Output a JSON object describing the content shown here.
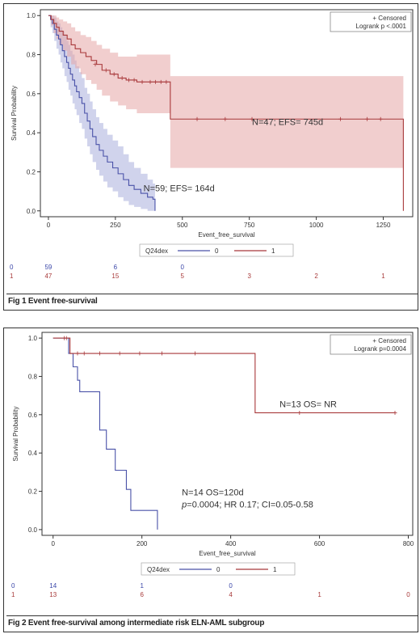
{
  "colors": {
    "group0": "#4a52a8",
    "group1": "#a8383a",
    "band0": "#a9aedc",
    "band1": "#e6a6a6",
    "axis": "#333333",
    "at_risk0": "#3a46a8",
    "at_risk1": "#a83a3a"
  },
  "figures": [
    {
      "caption": "Fig 1 Event free-survival",
      "legend_censored": "+ Censored",
      "legend_logrank": "Logrank p <.0001",
      "strata_label": "Q24dex",
      "strata_names": [
        "0",
        "1"
      ],
      "annotations": [
        {
          "lines": [
            "N=47; EFS= 745d"
          ],
          "x": 760,
          "y": 0.44
        },
        {
          "lines": [
            "N=59; EFS= 164d"
          ],
          "x": 355,
          "y": 0.1
        }
      ],
      "at_risk_times": [
        0,
        250,
        500,
        750,
        1000,
        1250
      ],
      "at_risk": [
        {
          "group": "0",
          "counts": [
            "0",
            "59",
            "6",
            "0",
            "",
            "",
            ""
          ]
        },
        {
          "group": "1",
          "counts": [
            "1",
            "47",
            "15",
            "5",
            "3",
            "2",
            "1"
          ]
        }
      ]
    },
    {
      "caption": "Fig 2 Event free-survival among intermediate risk ELN-AML subgroup",
      "legend_censored": "+ Censored",
      "legend_logrank": "Logrank p=0.0004",
      "strata_label": "Q24dex",
      "strata_names": [
        "0",
        "1"
      ],
      "annotations": [
        {
          "lines": [
            "N=13 OS= NR"
          ],
          "x": 510,
          "y": 0.64
        },
        {
          "lines": [
            "N=14 OS=120d",
            "p=0.0004; HR 0.17; CI=0.05-0.58"
          ],
          "x": 290,
          "y": 0.18
        }
      ],
      "at_risk_times": [
        0,
        200,
        400,
        600,
        800
      ],
      "at_risk": [
        {
          "group": "0",
          "counts": [
            "0",
            "14",
            "1",
            "0",
            "",
            ""
          ]
        },
        {
          "group": "1",
          "counts": [
            "1",
            "13",
            "6",
            "4",
            "1",
            "0"
          ]
        }
      ]
    }
  ],
  "chart_data": [
    {
      "type": "line",
      "title": "",
      "xlabel": "Event_free_survival",
      "ylabel": "Survival Probability",
      "xlim": [
        -30,
        1360
      ],
      "ylim": [
        -0.03,
        1.03
      ],
      "xticks": [
        0,
        250,
        500,
        750,
        1000,
        1250
      ],
      "yticks": [
        0.0,
        0.2,
        0.4,
        0.6,
        0.8,
        1.0
      ],
      "legend_position": "top-right",
      "grid": false,
      "series": [
        {
          "name": "0",
          "x": [
            0,
            8,
            15,
            22,
            30,
            38,
            45,
            52,
            60,
            68,
            75,
            82,
            90,
            98,
            105,
            115,
            125,
            135,
            145,
            155,
            165,
            178,
            190,
            205,
            220,
            240,
            260,
            280,
            300,
            320,
            345,
            370,
            390,
            398
          ],
          "y": [
            1.0,
            0.98,
            0.96,
            0.93,
            0.9,
            0.88,
            0.85,
            0.82,
            0.79,
            0.76,
            0.73,
            0.7,
            0.67,
            0.64,
            0.61,
            0.58,
            0.55,
            0.5,
            0.46,
            0.42,
            0.38,
            0.34,
            0.31,
            0.28,
            0.25,
            0.22,
            0.19,
            0.16,
            0.13,
            0.11,
            0.09,
            0.07,
            0.06,
            0.0
          ],
          "lower": [
            1.0,
            0.94,
            0.91,
            0.87,
            0.83,
            0.8,
            0.76,
            0.73,
            0.69,
            0.66,
            0.62,
            0.59,
            0.55,
            0.52,
            0.49,
            0.45,
            0.42,
            0.37,
            0.33,
            0.29,
            0.25,
            0.21,
            0.18,
            0.15,
            0.12,
            0.1,
            0.07,
            0.05,
            0.03,
            0.02,
            0.01,
            0.0,
            0.0,
            0.0
          ],
          "upper": [
            1.0,
            1.0,
            1.0,
            0.99,
            0.97,
            0.96,
            0.94,
            0.92,
            0.9,
            0.87,
            0.85,
            0.82,
            0.8,
            0.77,
            0.74,
            0.71,
            0.68,
            0.63,
            0.6,
            0.56,
            0.52,
            0.48,
            0.45,
            0.42,
            0.39,
            0.36,
            0.33,
            0.29,
            0.25,
            0.22,
            0.19,
            0.16,
            0.14,
            0.0
          ],
          "censored": []
        },
        {
          "name": "1",
          "x": [
            0,
            10,
            20,
            30,
            40,
            55,
            70,
            85,
            100,
            120,
            140,
            160,
            180,
            200,
            230,
            260,
            290,
            330,
            455,
            1325
          ],
          "y": [
            1.0,
            0.98,
            0.96,
            0.94,
            0.92,
            0.9,
            0.88,
            0.85,
            0.83,
            0.81,
            0.79,
            0.77,
            0.75,
            0.72,
            0.7,
            0.68,
            0.67,
            0.66,
            0.47,
            0.0
          ],
          "lower": [
            1.0,
            0.95,
            0.91,
            0.88,
            0.85,
            0.82,
            0.79,
            0.75,
            0.73,
            0.7,
            0.67,
            0.65,
            0.62,
            0.59,
            0.56,
            0.54,
            0.52,
            0.5,
            0.22,
            0.0
          ],
          "upper": [
            1.0,
            1.0,
            1.0,
            0.99,
            0.98,
            0.97,
            0.96,
            0.94,
            0.92,
            0.9,
            0.89,
            0.87,
            0.85,
            0.83,
            0.81,
            0.79,
            0.79,
            0.8,
            0.69,
            0.0
          ],
          "censored": [
            [
              175,
              0.75
            ],
            [
              215,
              0.72
            ],
            [
              245,
              0.7
            ],
            [
              275,
              0.68
            ],
            [
              300,
              0.67
            ],
            [
              320,
              0.67
            ],
            [
              350,
              0.66
            ],
            [
              380,
              0.66
            ],
            [
              400,
              0.66
            ],
            [
              420,
              0.66
            ],
            [
              440,
              0.66
            ],
            [
              555,
              0.47
            ],
            [
              660,
              0.47
            ],
            [
              760,
              0.47
            ],
            [
              1090,
              0.47
            ],
            [
              1190,
              0.47
            ],
            [
              1240,
              0.47
            ]
          ]
        }
      ]
    },
    {
      "type": "line",
      "title": "",
      "xlabel": "Event_free_survival",
      "ylabel": "Survival Probability",
      "xlim": [
        -25,
        810
      ],
      "ylim": [
        -0.03,
        1.03
      ],
      "xticks": [
        0,
        200,
        400,
        600,
        800
      ],
      "yticks": [
        0.0,
        0.2,
        0.4,
        0.6,
        0.8,
        1.0
      ],
      "legend_position": "top-right",
      "grid": false,
      "series": [
        {
          "name": "0",
          "x": [
            0,
            35,
            45,
            55,
            60,
            80,
            105,
            120,
            140,
            165,
            175,
            230,
            235
          ],
          "y": [
            1.0,
            0.92,
            0.85,
            0.78,
            0.72,
            0.72,
            0.52,
            0.42,
            0.31,
            0.21,
            0.1,
            0.1,
            0.0
          ],
          "censored": []
        },
        {
          "name": "1",
          "x": [
            0,
            38,
            455,
            770
          ],
          "y": [
            1.0,
            0.92,
            0.61,
            0.61
          ],
          "censored": [
            [
              25,
              1.0
            ],
            [
              30,
              1.0
            ],
            [
              55,
              0.92
            ],
            [
              70,
              0.92
            ],
            [
              105,
              0.92
            ],
            [
              150,
              0.92
            ],
            [
              195,
              0.92
            ],
            [
              245,
              0.92
            ],
            [
              320,
              0.92
            ],
            [
              555,
              0.61
            ],
            [
              770,
              0.61
            ]
          ]
        }
      ]
    }
  ]
}
